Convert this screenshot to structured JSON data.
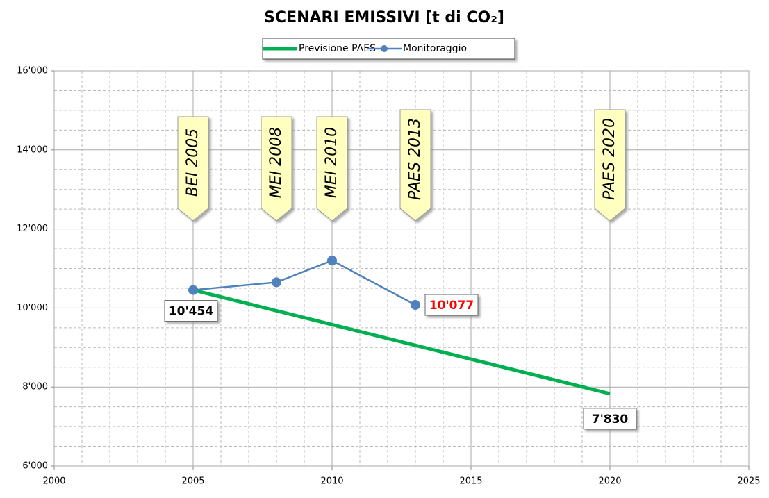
{
  "chart_data": {
    "type": "line",
    "title": "SCENARI EMISSIVI [t di CO₂]",
    "series": [
      {
        "name": "Previsione PAES",
        "color": "#00b050",
        "x": [
          2005,
          2020
        ],
        "values": [
          10454,
          7830
        ],
        "value_labels": [
          null,
          "7'830"
        ],
        "value_label_colors": [
          null,
          "#000000"
        ]
      },
      {
        "name": "Monitoraggio",
        "color": "#4f81bd",
        "x": [
          2005,
          2008,
          2010,
          2013
        ],
        "values": [
          10454,
          10650,
          11200,
          10077
        ],
        "value_labels": [
          "10'454",
          null,
          null,
          "10'077"
        ],
        "value_label_colors": [
          "#000000",
          null,
          null,
          "#ff0000"
        ]
      }
    ],
    "annotations": [
      {
        "text": "BEI 2005",
        "x": 2005
      },
      {
        "text": "MEI 2008",
        "x": 2008
      },
      {
        "text": "MEI 2010",
        "x": 2010
      },
      {
        "text": "PAES 2013",
        "x": 2013
      },
      {
        "text": "PAES 2020",
        "x": 2020
      }
    ],
    "xlim": [
      2000,
      2025
    ],
    "xticks": [
      2000,
      2005,
      2010,
      2015,
      2020,
      2025
    ],
    "ylim": [
      6000,
      16000
    ],
    "yticks": [
      {
        "value": 6000,
        "label": "6'000"
      },
      {
        "value": 8000,
        "label": "8'000"
      },
      {
        "value": 10000,
        "label": "10'000"
      },
      {
        "value": 12000,
        "label": "12'000"
      },
      {
        "value": 14000,
        "label": "14'000"
      },
      {
        "value": 16000,
        "label": "16'000"
      }
    ],
    "grid": true,
    "legend": "top"
  }
}
